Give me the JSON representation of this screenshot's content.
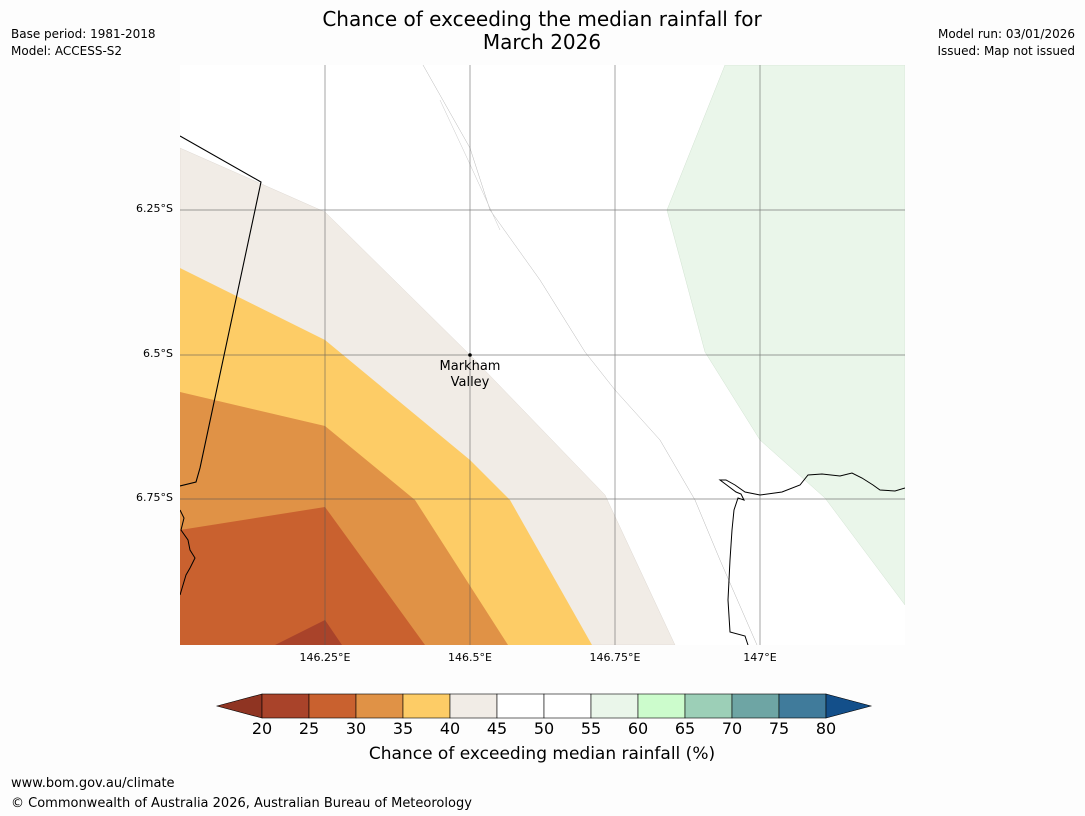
{
  "header": {
    "title_line1": "Chance of exceeding the median rainfall for",
    "title_line2": "March 2026",
    "base_period": "Base period: 1981-2018",
    "model": "Model: ACCESS-S2",
    "model_run": "Model run: 03/01/2026",
    "issued": "Issued: Map not issued"
  },
  "map": {
    "latitude_labels": [
      "6.25°S",
      "6.5°S",
      "6.75°S"
    ],
    "longitude_labels": [
      "146.25°E",
      "146.5°E",
      "146.75°E",
      "147°E"
    ],
    "place_name_line1": "Markham",
    "place_name_line2": "Valley"
  },
  "colorbar": {
    "title": "Chance of exceeding median rainfall (%)",
    "tick_labels": [
      "20",
      "25",
      "30",
      "35",
      "40",
      "45",
      "50",
      "55",
      "60",
      "65",
      "70",
      "75",
      "80"
    ],
    "colors": [
      "#a9432a",
      "#c9612f",
      "#e09246",
      "#fdcc66",
      "#f1ece6",
      "#ffffff",
      "#ffffff",
      "#eaf6ea",
      "#ccfccc",
      "#9ccfb7",
      "#6ea5a4",
      "#407b9b"
    ],
    "under_color": "#8f3422",
    "over_color": "#134f8a"
  },
  "footer": {
    "url": "www.bom.gov.au/climate",
    "copyright": "© Commonwealth of Australia 2026, Australian Bureau of Meteorology"
  }
}
